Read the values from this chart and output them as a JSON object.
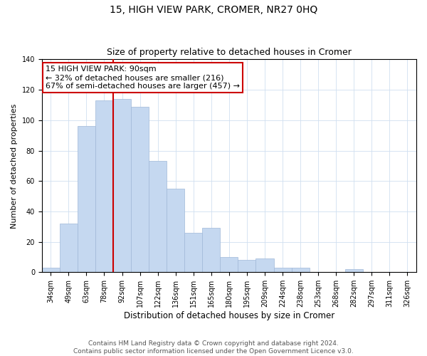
{
  "title": "15, HIGH VIEW PARK, CROMER, NR27 0HQ",
  "subtitle": "Size of property relative to detached houses in Cromer",
  "xlabel": "Distribution of detached houses by size in Cromer",
  "ylabel": "Number of detached properties",
  "categories": [
    "34sqm",
    "49sqm",
    "63sqm",
    "78sqm",
    "92sqm",
    "107sqm",
    "122sqm",
    "136sqm",
    "151sqm",
    "165sqm",
    "180sqm",
    "195sqm",
    "209sqm",
    "224sqm",
    "238sqm",
    "253sqm",
    "268sqm",
    "282sqm",
    "297sqm",
    "311sqm",
    "326sqm"
  ],
  "values": [
    3,
    32,
    96,
    113,
    114,
    109,
    73,
    55,
    26,
    29,
    10,
    8,
    9,
    3,
    3,
    0,
    0,
    2,
    0,
    0,
    0
  ],
  "bar_color": "#c5d8f0",
  "bar_edge_color": "#a0b8d8",
  "vline_color": "#cc0000",
  "ylim": [
    0,
    140
  ],
  "yticks": [
    0,
    20,
    40,
    60,
    80,
    100,
    120,
    140
  ],
  "annotation_title": "15 HIGH VIEW PARK: 90sqm",
  "annotation_line1": "← 32% of detached houses are smaller (216)",
  "annotation_line2": "67% of semi-detached houses are larger (457) →",
  "annotation_box_color": "#ffffff",
  "annotation_box_edge": "#cc0000",
  "footer_line1": "Contains HM Land Registry data © Crown copyright and database right 2024.",
  "footer_line2": "Contains public sector information licensed under the Open Government Licence v3.0.",
  "title_fontsize": 10,
  "subtitle_fontsize": 9,
  "xlabel_fontsize": 8.5,
  "ylabel_fontsize": 8,
  "tick_fontsize": 7,
  "annotation_fontsize": 8,
  "footer_fontsize": 6.5
}
